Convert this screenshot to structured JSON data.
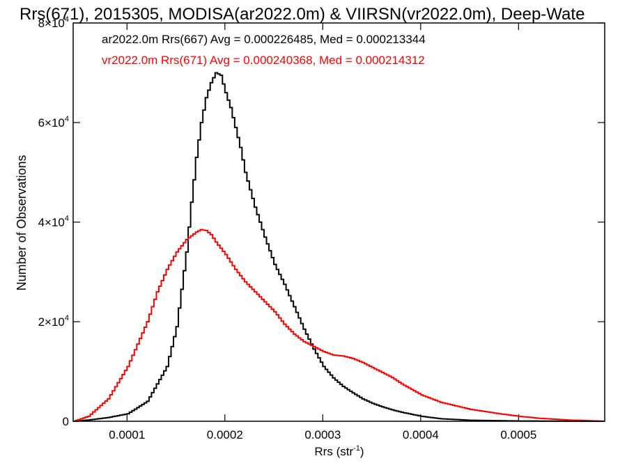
{
  "chart_data": {
    "type": "line",
    "title": "Rrs(671), 2015305, MODISA(ar2022.0m) & VIIRSN(vr2022.0m), Deep-Wate",
    "xlabel": "Rrs (str",
    "xlabel_sup": "-1",
    "xlabel_close": ")",
    "ylabel": "Number of Observations",
    "xlim": [
      4.5e-05,
      0.000588
    ],
    "ylim": [
      0,
      80000
    ],
    "x_ticks": [
      {
        "value": 0.0001,
        "label": "0.0001"
      },
      {
        "value": 0.0002,
        "label": "0.0002"
      },
      {
        "value": 0.0003,
        "label": "0.0003"
      },
      {
        "value": 0.0004,
        "label": "0.0004"
      },
      {
        "value": 0.0005,
        "label": "0.0005"
      }
    ],
    "y_ticks": [
      {
        "value": 0,
        "mant": "0",
        "exp": ""
      },
      {
        "value": 20000,
        "mant": "2×10",
        "exp": "4"
      },
      {
        "value": 40000,
        "mant": "4×10",
        "exp": "4"
      },
      {
        "value": 60000,
        "mant": "6×10",
        "exp": "4"
      },
      {
        "value": 80000,
        "mant": "8×10",
        "exp": "4"
      }
    ],
    "grid": false,
    "legend_position": "top-left",
    "series": [
      {
        "name": "ar2022.0m Rrs(667) Avg = 0.000226485, Med = 0.000213344",
        "color": "#000000",
        "x": [
          4.5e-05,
          6e-05,
          8e-05,
          0.0001,
          0.00012,
          0.00014,
          0.00015,
          0.00016,
          0.000165,
          0.00017,
          0.000175,
          0.00018,
          0.000185,
          0.00019,
          0.000195,
          0.0002,
          0.000205,
          0.00021,
          0.000215,
          0.00022,
          0.00023,
          0.00024,
          0.00025,
          0.00026,
          0.00027,
          0.00028,
          0.00029,
          0.0003,
          0.00031,
          0.00032,
          0.00033,
          0.00034,
          0.00035,
          0.00036,
          0.00037,
          0.00038,
          0.0004,
          0.00042,
          0.00045,
          0.0005,
          0.00055,
          0.000588
        ],
        "y": [
          0,
          250,
          750,
          1500,
          4000,
          11000,
          19000,
          34000,
          44000,
          53000,
          60000,
          65000,
          68000,
          70000,
          69500,
          66000,
          63000,
          59000,
          55000,
          50000,
          43000,
          37000,
          31500,
          27500,
          23000,
          18500,
          14500,
          11000,
          8700,
          7000,
          5700,
          4500,
          3600,
          2900,
          2300,
          1800,
          1000,
          500,
          200,
          60,
          20,
          0
        ]
      },
      {
        "name": "vr2022.0m Rrs(671) Avg = 0.000240368, Med = 0.000214312",
        "color": "#ff0000",
        "x": [
          4.5e-05,
          6e-05,
          8e-05,
          0.0001,
          0.00011,
          0.00012,
          0.00013,
          0.00014,
          0.00015,
          0.00016,
          0.00017,
          0.000175,
          0.00018,
          0.000185,
          0.00019,
          0.0002,
          0.00021,
          0.00022,
          0.00023,
          0.00024,
          0.00025,
          0.00026,
          0.00027,
          0.00028,
          0.00029,
          0.0003,
          0.00031,
          0.00032,
          0.00033,
          0.00034,
          0.00035,
          0.00036,
          0.00037,
          0.00038,
          0.0004,
          0.00042,
          0.00045,
          0.00048,
          0.0005,
          0.00052,
          0.00055,
          0.000588
        ],
        "y": [
          0,
          1000,
          4500,
          11000,
          15500,
          20000,
          26000,
          30500,
          34000,
          36500,
          38000,
          38500,
          38300,
          37500,
          36000,
          33500,
          30500,
          28000,
          26000,
          24000,
          22000,
          19500,
          17500,
          16000,
          15000,
          14000,
          13300,
          13100,
          12600,
          11800,
          10800,
          9800,
          8800,
          7500,
          5300,
          3800,
          2400,
          1500,
          1000,
          600,
          250,
          0
        ]
      }
    ]
  }
}
